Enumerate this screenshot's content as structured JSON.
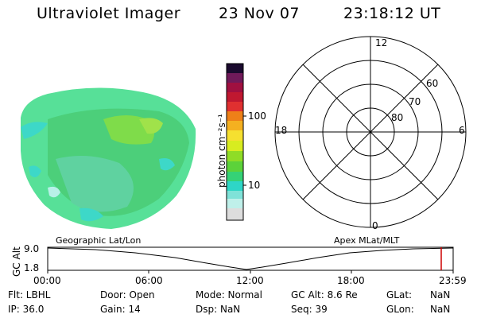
{
  "header": {
    "title": "Ultraviolet Imager",
    "date": "23 Nov 07",
    "time": "23:18:12 UT"
  },
  "colorbar": {
    "unit_label": "photon cm⁻²s⁻¹",
    "ticks": [
      "100",
      "10"
    ]
  },
  "polar_plot": {
    "mlt_labels": {
      "top": "12",
      "right": "6",
      "bottom": "0",
      "left": "18"
    },
    "lat_labels": [
      "60",
      "70",
      "80"
    ]
  },
  "timeline": {
    "left_title": "Geographic Lat/Lon",
    "right_title": "Apex MLat/MLT",
    "axis_label": "GC Alt",
    "y_ticks": [
      "9.0",
      "1.8"
    ],
    "x_ticks": [
      "00:00",
      "06:00",
      "12:00",
      "18:00",
      "23:59"
    ],
    "marker_color": "#cc0000"
  },
  "status": {
    "filter": "Flt: LBHL",
    "ip": "IP: 36.0",
    "door": "Door: Open",
    "gain": "Gain: 14",
    "mode": "Mode: Normal",
    "dsp": "Dsp: NaN",
    "gc_alt": "GC Alt: 8.6 Re",
    "seq": "Seq: 39",
    "glat_label": "GLat:",
    "glat_value": "NaN",
    "glon_label": "GLon:",
    "glon_value": "NaN"
  }
}
